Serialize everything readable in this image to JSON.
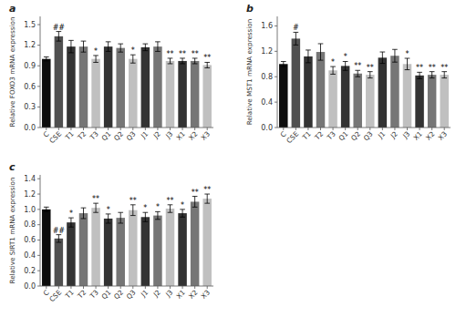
{
  "chart_data": [
    {
      "type": "bar",
      "title": "a",
      "ylabel": "Relative FOXO3 mRNA expression",
      "categories": [
        "C",
        "CSE",
        "T1",
        "T2",
        "T3",
        "Q1",
        "Q2",
        "Q3",
        "J1",
        "J2",
        "J3",
        "X1",
        "X2",
        "X3"
      ],
      "values": [
        1.0,
        1.33,
        1.18,
        1.18,
        1.0,
        1.18,
        1.16,
        1.0,
        1.17,
        1.18,
        0.97,
        0.97,
        0.97,
        0.91
      ],
      "errors": [
        0.03,
        0.07,
        0.09,
        0.08,
        0.05,
        0.07,
        0.06,
        0.06,
        0.05,
        0.07,
        0.04,
        0.04,
        0.04,
        0.04
      ],
      "annotations": [
        null,
        "##",
        null,
        null,
        "*",
        null,
        null,
        "*",
        null,
        null,
        "**",
        "**",
        "**",
        "**"
      ],
      "colors": [
        "#0d0d0d",
        "#505050",
        "#333333",
        "#767676",
        "#c0c0c0",
        "#333333",
        "#767676",
        "#c0c0c0",
        "#333333",
        "#767676",
        "#c0c0c0",
        "#333333",
        "#767676",
        "#c0c0c0"
      ],
      "ylim": [
        0,
        1.62
      ],
      "yticks": [
        {
          "value": 0.0,
          "label": "0.0"
        },
        0.3,
        0.6,
        0.9,
        1.2,
        1.5
      ]
    },
    {
      "type": "bar",
      "title": "b",
      "ylabel": "Relative MST1 mRNA expression",
      "categories": [
        "C",
        "CSE",
        "T1",
        "T2",
        "T3",
        "Q1",
        "Q2",
        "Q3",
        "J1",
        "J2",
        "J3",
        "X1",
        "X2",
        "X3"
      ],
      "values": [
        1.0,
        1.4,
        1.12,
        1.19,
        0.9,
        0.97,
        0.85,
        0.83,
        1.1,
        1.13,
        1.0,
        0.82,
        0.83,
        0.83
      ],
      "errors": [
        0.04,
        0.1,
        0.1,
        0.13,
        0.06,
        0.07,
        0.05,
        0.05,
        0.09,
        0.1,
        0.09,
        0.05,
        0.05,
        0.05
      ],
      "annotations": [
        null,
        "#",
        null,
        null,
        "*",
        "*",
        "**",
        "**",
        null,
        null,
        "*",
        "**",
        "**",
        "**"
      ],
      "colors": [
        "#0d0d0d",
        "#505050",
        "#333333",
        "#767676",
        "#c0c0c0",
        "#333333",
        "#767676",
        "#c0c0c0",
        "#333333",
        "#767676",
        "#c0c0c0",
        "#333333",
        "#767676",
        "#c0c0c0"
      ],
      "ylim": [
        0,
        1.75
      ],
      "yticks": [
        {
          "value": 0.0,
          "label": "0.0"
        },
        0.4,
        0.8,
        1.2,
        1.6
      ]
    },
    {
      "type": "bar",
      "title": "c",
      "ylabel": "Relative SIRT1 mRNA expression",
      "categories": [
        "C",
        "CSE",
        "T1",
        "T2",
        "T3",
        "Q1",
        "Q2",
        "Q3",
        "J1",
        "J2",
        "J3",
        "X1",
        "X2",
        "X3"
      ],
      "values": [
        1.0,
        0.62,
        0.83,
        0.95,
        1.02,
        0.88,
        0.89,
        0.99,
        0.9,
        0.92,
        1.01,
        0.95,
        1.1,
        1.14
      ],
      "errors": [
        0.03,
        0.05,
        0.06,
        0.07,
        0.06,
        0.06,
        0.07,
        0.07,
        0.06,
        0.05,
        0.05,
        0.05,
        0.07,
        0.06
      ],
      "annotations": [
        null,
        "##",
        "*",
        null,
        "**",
        "*",
        null,
        "**",
        "*",
        "*",
        "**",
        "*",
        "**",
        "**"
      ],
      "colors": [
        "#0d0d0d",
        "#505050",
        "#333333",
        "#767676",
        "#c0c0c0",
        "#333333",
        "#767676",
        "#c0c0c0",
        "#333333",
        "#767676",
        "#c0c0c0",
        "#333333",
        "#767676",
        "#c0c0c0"
      ],
      "ylim": [
        0,
        1.45
      ],
      "yticks": [
        {
          "value": 0.0,
          "label": "0.0"
        },
        0.2,
        0.4,
        0.6,
        0.8,
        {
          "value": 1.0,
          "label": "1.0"
        },
        1.2,
        1.4
      ]
    }
  ]
}
